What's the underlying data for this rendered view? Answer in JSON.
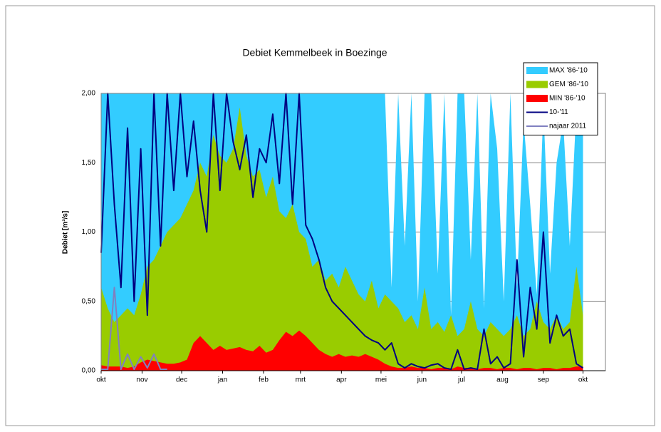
{
  "chart_data": {
    "type": "line",
    "title": "Debiet Kemmelbeek in Boezinge",
    "y_label": "Debiet [m³/s]",
    "x": [
      0,
      5,
      10,
      15,
      20,
      25,
      30,
      35,
      40,
      45,
      50,
      55,
      60,
      65,
      70,
      75,
      80,
      85,
      90,
      95,
      100,
      105,
      110,
      115,
      120,
      125,
      130,
      135,
      140,
      145,
      150,
      155,
      160,
      165,
      170,
      175,
      180,
      185,
      190,
      195,
      200,
      205,
      210,
      215,
      220,
      225,
      230,
      235,
      240,
      245,
      250,
      255,
      260,
      265,
      270,
      275,
      280,
      285,
      290,
      295,
      300,
      305,
      310,
      315,
      320,
      325,
      330,
      335,
      340,
      345,
      350,
      355,
      360,
      365
    ],
    "xlim": [
      0,
      382
    ],
    "xticks": [
      {
        "value": 0,
        "label": "okt"
      },
      {
        "value": 31,
        "label": "nov"
      },
      {
        "value": 61,
        "label": "dec"
      },
      {
        "value": 92,
        "label": "jan"
      },
      {
        "value": 123,
        "label": "feb"
      },
      {
        "value": 151,
        "label": "mrt"
      },
      {
        "value": 182,
        "label": "apr"
      },
      {
        "value": 212,
        "label": "mei"
      },
      {
        "value": 243,
        "label": "jun"
      },
      {
        "value": 273,
        "label": "jul"
      },
      {
        "value": 304,
        "label": "aug"
      },
      {
        "value": 335,
        "label": "sep"
      },
      {
        "value": 365,
        "label": "okt"
      }
    ],
    "ylim": [
      0,
      2
    ],
    "yticks": [
      {
        "value": 0,
        "label": "0,00"
      },
      {
        "value": 0.5,
        "label": "0,50"
      },
      {
        "value": 1,
        "label": "1,00"
      },
      {
        "value": 1.5,
        "label": "1,50"
      },
      {
        "value": 2,
        "label": "2,00"
      }
    ],
    "grid": true,
    "legend": "top-right",
    "series": [
      {
        "name": "MAX '86-'10",
        "type": "area",
        "color": "#33ccff",
        "values": [
          2,
          2,
          2,
          2,
          2,
          2,
          2,
          2,
          2,
          2,
          2,
          2,
          2,
          2,
          2,
          2,
          2,
          2,
          2,
          2,
          2,
          2,
          2,
          2,
          2,
          2,
          2,
          2,
          2,
          2,
          2,
          2,
          2,
          2,
          2,
          2,
          2,
          2,
          2,
          2,
          2,
          2,
          2,
          2,
          0.6,
          2,
          0.9,
          2,
          0.5,
          2,
          2,
          0.7,
          2,
          0.4,
          2,
          2,
          0.8,
          2,
          0.45,
          2,
          1.6,
          0.5,
          2,
          0.6,
          1.8,
          1.2,
          0.55,
          1.9,
          0.7,
          1.5,
          1.8,
          0.9,
          1.9,
          1.7
        ]
      },
      {
        "name": "GEM '86-'10",
        "type": "area",
        "color": "#99cc00",
        "values": [
          0.6,
          0.45,
          0.35,
          0.4,
          0.45,
          0.4,
          0.55,
          0.75,
          0.8,
          0.9,
          1.0,
          1.05,
          1.1,
          1.2,
          1.3,
          1.5,
          1.4,
          1.7,
          1.55,
          1.5,
          1.6,
          1.9,
          1.55,
          1.4,
          1.45,
          1.25,
          1.4,
          1.15,
          1.1,
          1.2,
          1.0,
          0.95,
          0.75,
          0.8,
          0.65,
          0.7,
          0.6,
          0.75,
          0.65,
          0.55,
          0.5,
          0.65,
          0.45,
          0.55,
          0.5,
          0.45,
          0.35,
          0.4,
          0.3,
          0.6,
          0.3,
          0.35,
          0.28,
          0.4,
          0.25,
          0.3,
          0.5,
          0.3,
          0.25,
          0.35,
          0.3,
          0.25,
          0.3,
          0.4,
          0.25,
          0.3,
          0.5,
          0.35,
          0.3,
          0.4,
          0.3,
          0.35,
          0.75,
          0.4
        ]
      },
      {
        "name": "MIN '86-'10",
        "type": "area",
        "color": "#ff0000",
        "values": [
          0.04,
          0.03,
          0.03,
          0.03,
          0.02,
          0.03,
          0.06,
          0.08,
          0.07,
          0.06,
          0.05,
          0.05,
          0.06,
          0.08,
          0.2,
          0.25,
          0.2,
          0.15,
          0.18,
          0.15,
          0.16,
          0.17,
          0.15,
          0.14,
          0.18,
          0.13,
          0.15,
          0.22,
          0.28,
          0.25,
          0.29,
          0.25,
          0.2,
          0.15,
          0.12,
          0.1,
          0.12,
          0.1,
          0.11,
          0.1,
          0.12,
          0.1,
          0.08,
          0.05,
          0.03,
          0.02,
          0.02,
          0.03,
          0.02,
          0.02,
          0.01,
          0.02,
          0.02,
          0.01,
          0.03,
          0.02,
          0.02,
          0.01,
          0.02,
          0.02,
          0.01,
          0.02,
          0.02,
          0.01,
          0.02,
          0.02,
          0.01,
          0.02,
          0.02,
          0.01,
          0.02,
          0.02,
          0.03,
          0.03
        ]
      },
      {
        "name": "10-'11",
        "type": "line",
        "color": "#000080",
        "values": [
          0.85,
          2,
          1.2,
          0.6,
          1.75,
          0.5,
          1.6,
          0.4,
          2,
          0.9,
          2,
          1.3,
          2,
          1.4,
          1.8,
          1.3,
          1.0,
          2,
          1.3,
          2,
          1.65,
          1.45,
          1.7,
          1.25,
          1.6,
          1.5,
          1.85,
          1.35,
          2,
          1.2,
          2,
          1.05,
          0.95,
          0.8,
          0.6,
          0.5,
          0.45,
          0.4,
          0.35,
          0.3,
          0.25,
          0.22,
          0.2,
          0.15,
          0.2,
          0.05,
          0.02,
          0.05,
          0.03,
          0.02,
          0.04,
          0.05,
          0.02,
          0.01,
          0.15,
          0.01,
          0.02,
          0.01,
          0.3,
          0.05,
          0.1,
          0.02,
          0.05,
          0.8,
          0.1,
          0.6,
          0.3,
          1.0,
          0.2,
          0.4,
          0.25,
          0.3,
          0.05,
          0.02
        ]
      },
      {
        "name": "najaar 2011",
        "type": "line",
        "color": "#8080c0",
        "values": [
          0.01,
          0.01,
          0.6,
          0.01,
          0.12,
          0.01,
          0.1,
          0.02,
          0.12,
          0.01,
          0.01,
          null,
          null,
          null,
          null,
          null,
          null,
          null,
          null,
          null,
          null,
          null,
          null,
          null,
          null,
          null,
          null,
          null,
          null,
          null,
          null,
          null,
          null,
          null,
          null,
          null,
          null,
          null,
          null,
          null,
          null,
          null,
          null,
          null,
          null,
          null,
          null,
          null,
          null,
          null,
          null,
          null,
          null,
          null,
          null,
          null,
          null,
          null,
          null,
          null,
          null,
          null,
          null,
          null,
          null,
          null,
          null,
          null,
          null,
          null,
          null,
          null,
          null,
          null
        ]
      }
    ]
  }
}
